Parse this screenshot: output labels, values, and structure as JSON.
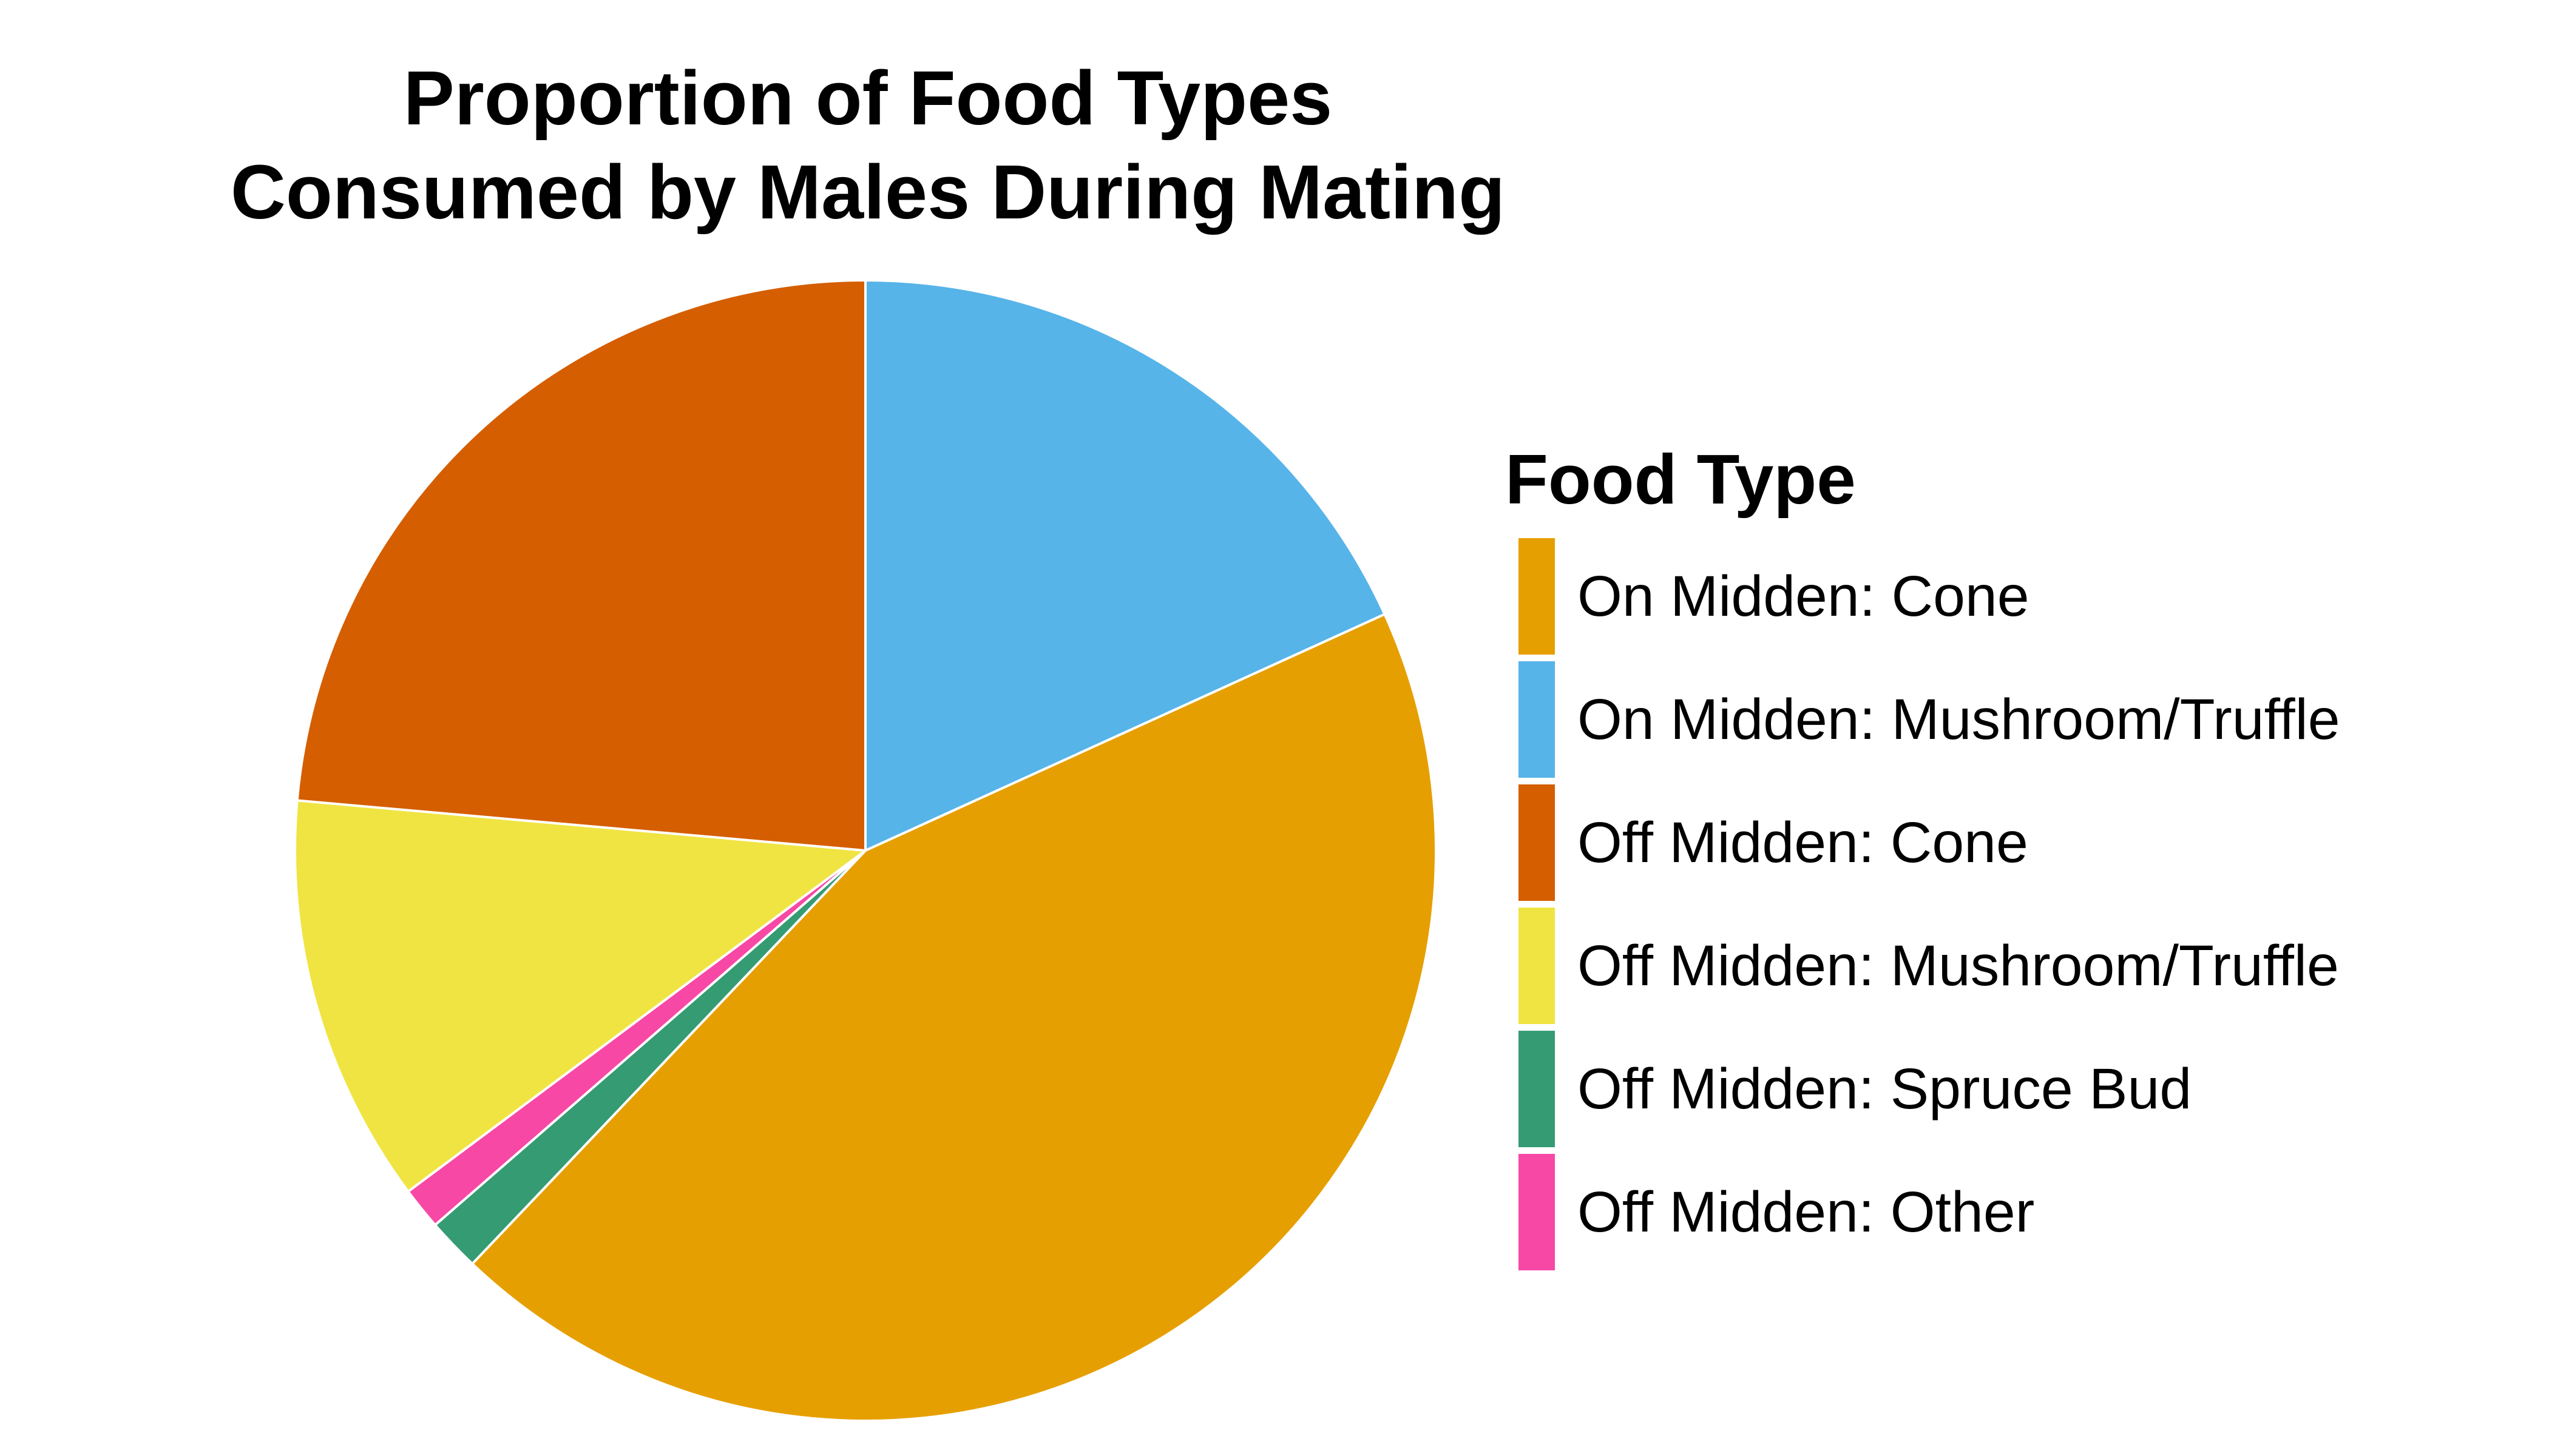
{
  "chart_data": {
    "type": "pie",
    "title": [
      "Proportion of Food Types",
      "Consumed by Males During Mating"
    ],
    "legend": {
      "title": "Food Type",
      "position": "right"
    },
    "start_angle": "12 o'clock",
    "direction": "clockwise",
    "slices": [
      {
        "label": "On Midden: Mushroom/Truffle",
        "value": 18.2,
        "color": "#56B4E9"
      },
      {
        "label": "On Midden: Cone",
        "value": 43.9,
        "color": "#E69F00"
      },
      {
        "label": "Off Midden: Spruce Bud",
        "value": 1.5,
        "color": "#359B73"
      },
      {
        "label": "Off Midden: Other",
        "value": 1.2,
        "color": "#F748A5"
      },
      {
        "label": "Off Midden: Mushroom/Truffle",
        "value": 11.6,
        "color": "#F0E442"
      },
      {
        "label": "Off Midden: Cone",
        "value": 23.6,
        "color": "#D55E00"
      }
    ],
    "legend_order": [
      "On Midden: Cone",
      "On Midden: Mushroom/Truffle",
      "Off Midden: Cone",
      "Off Midden: Mushroom/Truffle",
      "Off Midden: Spruce Bud",
      "Off Midden: Other"
    ]
  }
}
